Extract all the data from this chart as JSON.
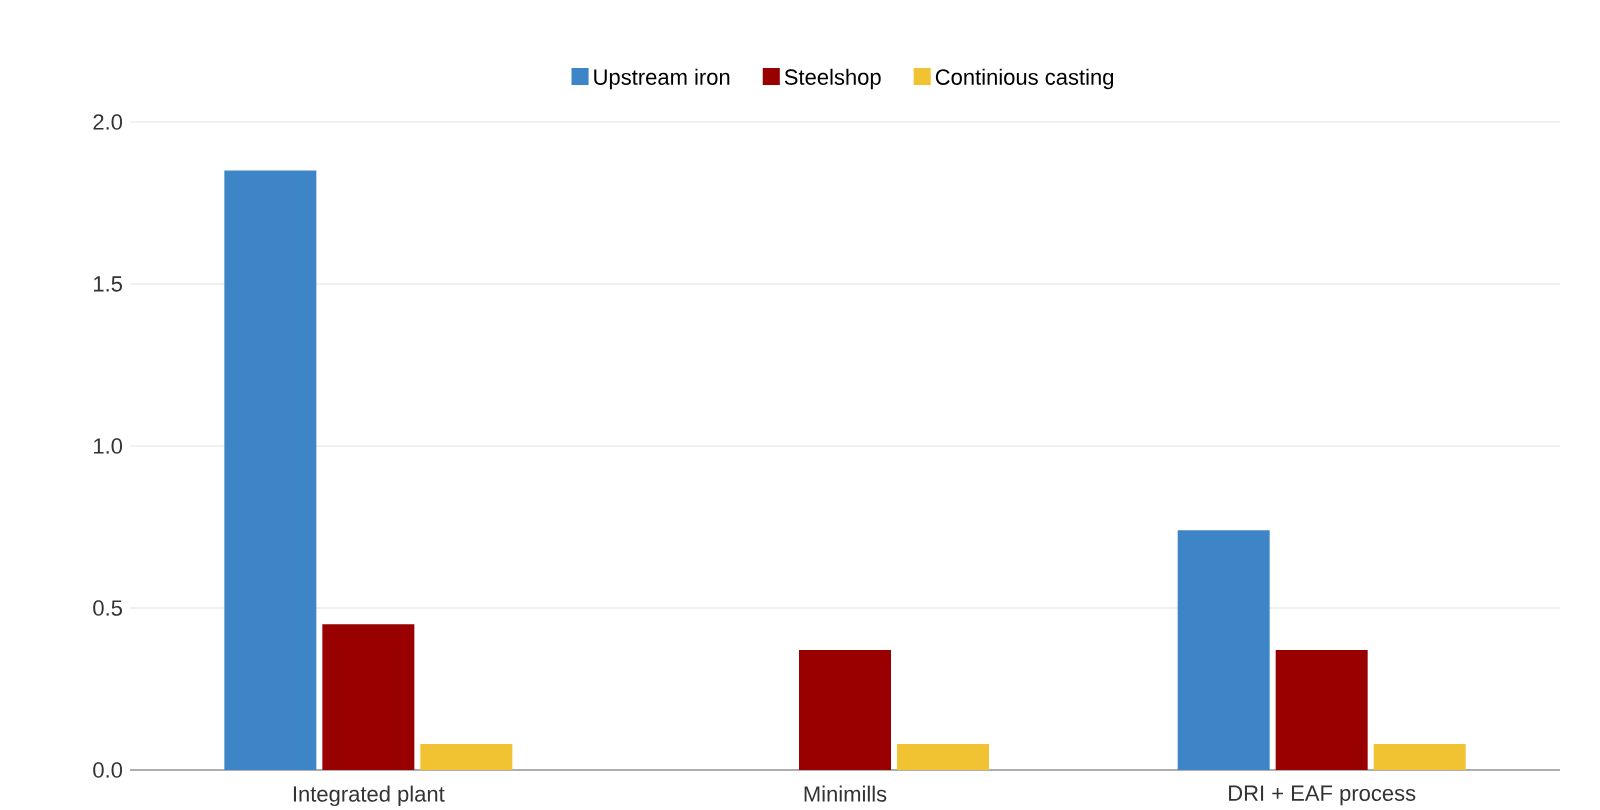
{
  "chart_data": {
    "type": "bar",
    "categories": [
      "Integrated  plant",
      "Minimills",
      "DRI + EAF process"
    ],
    "series": [
      {
        "name": "Upstream iron",
        "color": "#3d85c6",
        "values": [
          1.85,
          0,
          0.74
        ]
      },
      {
        "name": "Steelshop",
        "color": "#990000",
        "values": [
          0.45,
          0.37,
          0.37
        ]
      },
      {
        "name": "Continious casting",
        "color": "#f1c232",
        "values": [
          0.08,
          0.08,
          0.08
        ]
      }
    ],
    "ylim": [
      0,
      2.0
    ],
    "yticks": [
      {
        "value": 0,
        "label": "0.0"
      },
      {
        "value": 0.5,
        "label": "0.5"
      },
      {
        "value": 1.0,
        "label": "1.0"
      },
      {
        "value": 1.5,
        "label": "1.5"
      },
      {
        "value": 2.0,
        "label": "2.0"
      }
    ],
    "grid": "y",
    "legend": "top"
  }
}
